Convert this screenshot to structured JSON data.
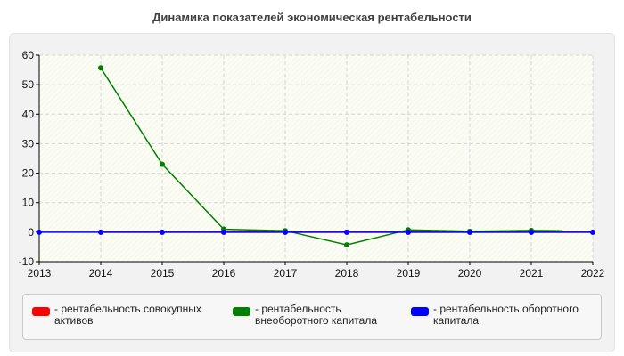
{
  "chart_data": {
    "type": "line",
    "title": "Динамика показателей экономическая рентабельности",
    "xlabel": "",
    "ylabel": "",
    "x": [
      2014,
      2015,
      2016,
      2017,
      2018,
      2019,
      2020,
      2021,
      2022
    ],
    "xlim": [
      2013,
      2022
    ],
    "ylim": [
      -10,
      60
    ],
    "xticks": [
      "2013",
      "2014",
      "2015",
      "2016",
      "2017",
      "2018",
      "2019",
      "2020",
      "2021",
      "2022"
    ],
    "yticks": [
      "-10",
      "0",
      "10",
      "20",
      "30",
      "40",
      "50",
      "60"
    ],
    "grid": true,
    "legend_position": "bottom",
    "series": [
      {
        "name": "- рентабельность совокупных активов",
        "color": "#ff0000",
        "x": [
          2014,
          2015,
          2016,
          2017,
          2018,
          2019,
          2020,
          2021,
          2022
        ],
        "values": [
          0,
          0,
          0,
          0,
          0,
          0,
          0,
          0,
          0
        ]
      },
      {
        "name": "- рентабельность внеоборотного капитала",
        "color": "#008000",
        "x": [
          2014,
          2015,
          2016,
          2017,
          2018,
          2019,
          2020,
          2021,
          2021.5
        ],
        "values": [
          55.7,
          23,
          1,
          0.5,
          -4.3,
          0.8,
          0.3,
          0.6,
          0.5
        ]
      },
      {
        "name": "- рентабельность оборотного капитала",
        "color": "#0000ff",
        "x": [
          2013,
          2014,
          2015,
          2016,
          2017,
          2018,
          2019,
          2020,
          2021,
          2022
        ],
        "values": [
          0,
          0,
          0,
          0,
          0,
          0,
          0,
          0,
          0,
          0
        ]
      }
    ]
  }
}
